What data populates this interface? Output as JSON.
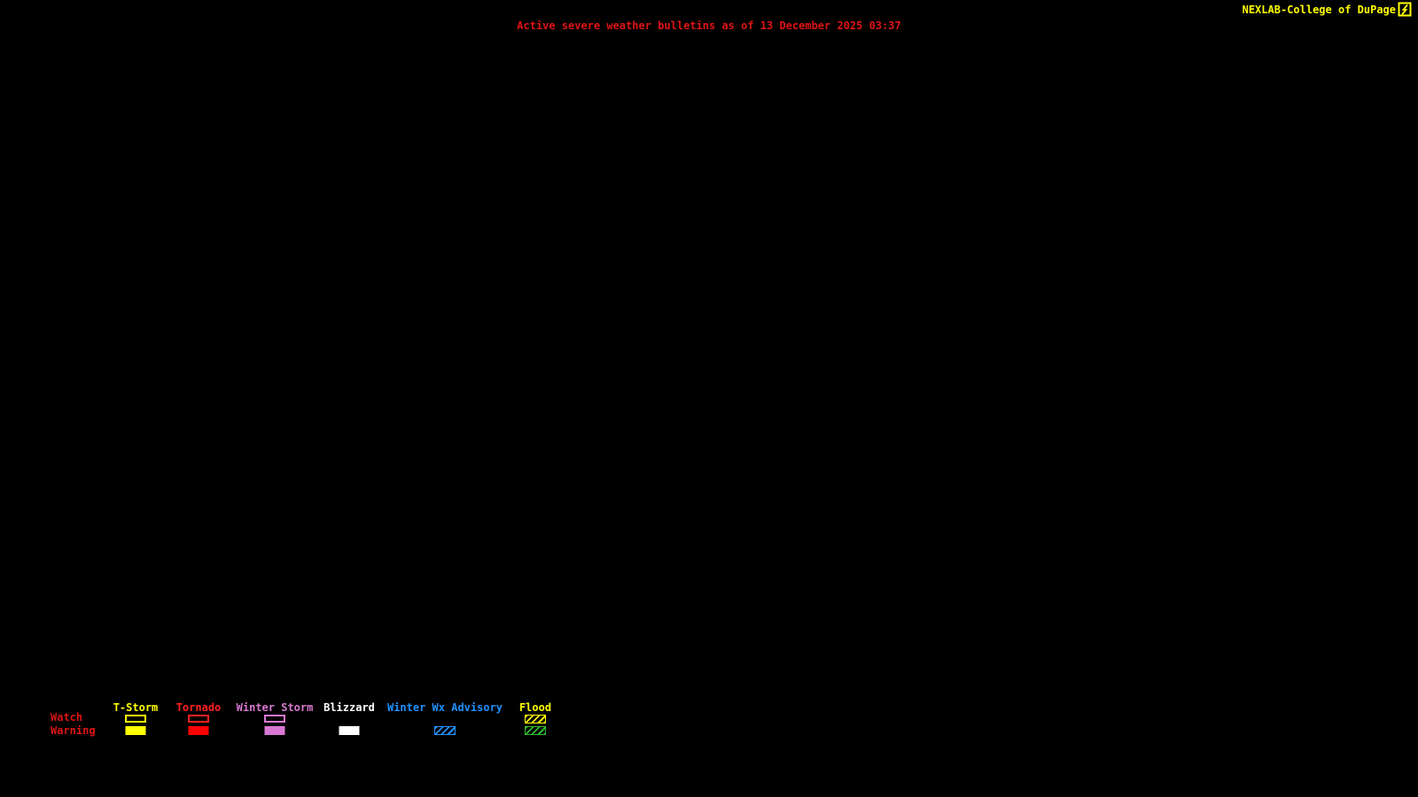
{
  "colors": {
    "background": "#000000",
    "title_red": "#DE1414",
    "credit_yellow": "#FFFF00"
  },
  "header": {
    "credit_text": "NEXLAB-College of DuPage",
    "logo_icon": "bolt-box-icon"
  },
  "title": {
    "text": "Active severe weather bulletins as of 13 December 2025 03:37"
  },
  "legend": {
    "rows": [
      {
        "label": "Watch"
      },
      {
        "label": "Warning"
      }
    ],
    "columns": [
      {
        "label": "T-Storm",
        "color": "#FFFF00",
        "watch_swatch": "outline",
        "warning_swatch": "fill"
      },
      {
        "label": "Tornado",
        "color": "#FF2020",
        "watch_swatch": "outline",
        "warning_swatch": "fill",
        "warning_color": "#FF0000"
      },
      {
        "label": "Winter Storm",
        "color": "#D878D2",
        "watch_swatch": "outline",
        "warning_swatch": "fill"
      },
      {
        "label": "Blizzard",
        "color": "#FFFFFF",
        "watch_swatch": "none",
        "warning_swatch": "fill"
      },
      {
        "label": "Winter Wx Advisory",
        "color": "#2090FF",
        "watch_swatch": "none",
        "warning_swatch": "hatch"
      },
      {
        "label": "Flood",
        "color": "#FFFF00",
        "watch_swatch": "hatch",
        "warning_swatch": "hatch",
        "warning_color": "#2EB82E"
      }
    ]
  }
}
